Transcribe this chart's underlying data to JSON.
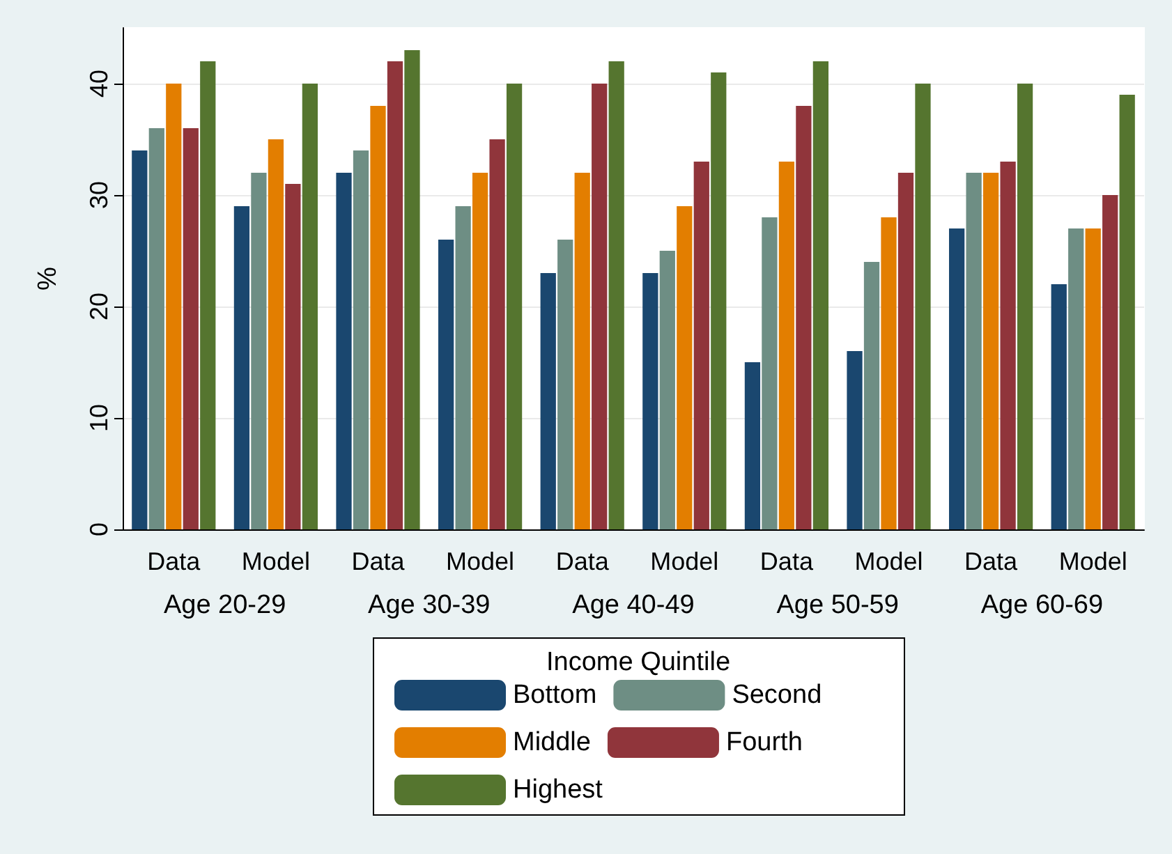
{
  "chart_data": {
    "type": "bar",
    "ylabel": "%",
    "legend_title": "Income Quintile",
    "categories": [
      "Data",
      "Model",
      "Data",
      "Model",
      "Data",
      "Model",
      "Data",
      "Model",
      "Data",
      "Model"
    ],
    "annotations": [
      "Age 20-29",
      "Age 30-39",
      "Age 40-49",
      "Age 50-59",
      "Age 60-69"
    ],
    "series": [
      {
        "name": "Bottom",
        "color": "#1a476f",
        "values": [
          34,
          29,
          32,
          26,
          23,
          23,
          15,
          16,
          27,
          22
        ]
      },
      {
        "name": "Second",
        "color": "#6e8e84",
        "values": [
          36,
          32,
          34,
          29,
          26,
          25,
          28,
          24,
          32,
          27
        ]
      },
      {
        "name": "Middle",
        "color": "#e37e00",
        "values": [
          40,
          35,
          38,
          32,
          32,
          29,
          33,
          28,
          32,
          27
        ]
      },
      {
        "name": "Fourth",
        "color": "#90353b",
        "values": [
          36,
          31,
          42,
          35,
          40,
          33,
          38,
          32,
          33,
          30
        ]
      },
      {
        "name": "Highest",
        "color": "#55752f",
        "values": [
          42,
          40,
          43,
          40,
          42,
          41,
          42,
          40,
          40,
          39
        ]
      }
    ],
    "ylim": [
      0,
      45
    ],
    "yticks": [
      0,
      10,
      20,
      30,
      40
    ],
    "grid": "y",
    "legend": "bottom"
  }
}
